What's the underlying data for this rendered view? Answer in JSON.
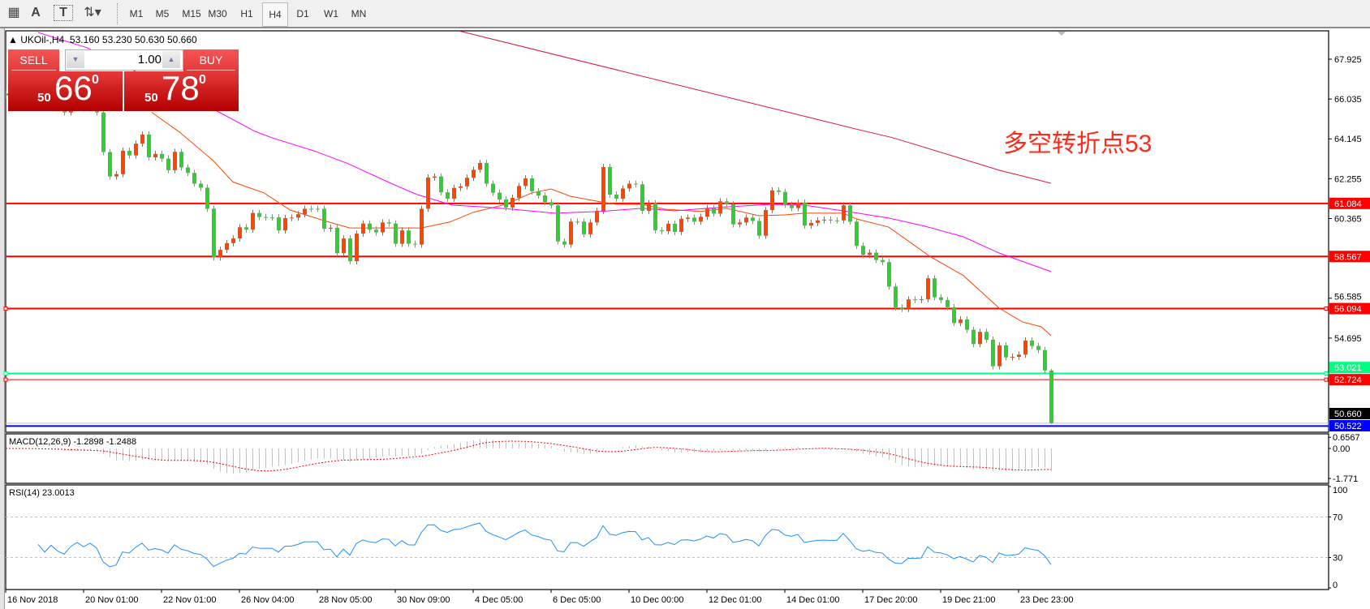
{
  "toolbar": {
    "tools": [
      {
        "icon": "period-separator-grid-icon",
        "glyph": "▦"
      },
      {
        "icon": "text-label-icon",
        "glyph": "A"
      },
      {
        "icon": "text-box-icon",
        "glyph": "T"
      },
      {
        "icon": "arrows-dropdown-icon",
        "glyph": "⇅▾"
      }
    ],
    "timeframes": [
      "M1",
      "M5",
      "M15",
      "M30",
      "H1",
      "H4",
      "D1",
      "W1",
      "MN"
    ],
    "active_timeframe": "H4"
  },
  "chart": {
    "symbol_line": "UKOil-,H4  53.160 53.230 50.630 50.660"
  },
  "trade_panel": {
    "sell_label": "SELL",
    "buy_label": "BUY",
    "lot": "1.00",
    "sell_price": {
      "prefix": "50",
      "big": "66",
      "sup": "0"
    },
    "buy_price": {
      "prefix": "50",
      "big": "78",
      "sup": "0"
    }
  },
  "annotation": "多空转折点53",
  "chart_data": {
    "type": "candlestick",
    "symbol": "UKOil-",
    "timeframe": "H4",
    "ylim": [
      50.23,
      69.27
    ],
    "first_open": 66.3,
    "last_bar": {
      "open": 53.16,
      "high": 53.23,
      "low": 50.63,
      "close": 50.66
    },
    "closes": [
      66.2,
      66.0,
      66.4,
      66.1,
      65.8,
      66.0,
      65.7,
      65.9,
      65.6,
      65.4,
      65.7,
      65.9,
      65.6,
      65.8,
      65.4,
      63.52,
      62.36,
      62.47,
      63.58,
      63.36,
      63.92,
      64.35,
      63.27,
      63.43,
      63.21,
      62.66,
      63.53,
      62.79,
      62.53,
      62.02,
      61.83,
      60.83,
      58.52,
      58.88,
      59.2,
      59.42,
      59.95,
      59.84,
      60.63,
      60.44,
      60.42,
      60.42,
      59.8,
      60.39,
      60.41,
      60.57,
      60.83,
      60.83,
      60.83,
      59.88,
      59.93,
      58.72,
      59.42,
      58.34,
      59.65,
      60.13,
      59.84,
      59.71,
      60.18,
      60.13,
      59.17,
      59.8,
      59.17,
      59.13,
      60.83,
      62.31,
      62.36,
      61.61,
      61.31,
      61.82,
      61.89,
      62.3,
      62.68,
      63.0,
      62.02,
      61.59,
      61.27,
      60.89,
      61.35,
      61.91,
      62.27,
      61.66,
      61.46,
      61.14,
      60.99,
      59.28,
      59.13,
      60.22,
      60.22,
      59.62,
      60.18,
      60.73,
      62.81,
      61.5,
      61.31,
      61.79,
      62.02,
      61.99,
      60.73,
      61.09,
      59.81,
      59.77,
      60.12,
      59.73,
      60.35,
      60.41,
      60.22,
      60.45,
      60.86,
      60.6,
      61.18,
      61.05,
      60.09,
      60.18,
      60.41,
      60.25,
      59.55,
      60.77,
      61.7,
      61.63,
      61.02,
      60.86,
      61.12,
      60.03,
      60.16,
      60.28,
      60.31,
      60.28,
      60.28,
      60.99,
      60.22,
      59.07,
      58.64,
      58.75,
      58.4,
      58.3,
      57.14,
      56.15,
      56.08,
      56.53,
      56.5,
      56.54,
      57.53,
      56.63,
      56.5,
      56.16,
      55.41,
      55.58,
      55.09,
      54.41,
      54.99,
      54.62,
      53.36,
      54.35,
      53.78,
      53.81,
      53.91,
      54.58,
      54.32,
      54.13,
      53.16,
      50.66
    ],
    "colors": {
      "bull": "#ff4500",
      "bear": "#32cd32"
    },
    "moving_averages": [
      {
        "color": "#ff4500",
        "points": [
          [
            22.5,
            65.4
          ],
          [
            26.8,
            64.46
          ],
          [
            32,
            63.1
          ],
          [
            35,
            62.1
          ],
          [
            39.8,
            61.58
          ],
          [
            43.8,
            60.77
          ],
          [
            49,
            60.27
          ],
          [
            53,
            59.92
          ],
          [
            64,
            59.92
          ],
          [
            68.4,
            60.2
          ],
          [
            72,
            60.66
          ],
          [
            77,
            61.04
          ],
          [
            81,
            61.58
          ],
          [
            84,
            61.77
          ],
          [
            87,
            61.42
          ],
          [
            91.6,
            61.16
          ],
          [
            94,
            61.04
          ],
          [
            98,
            61.04
          ],
          [
            101.5,
            60.81
          ],
          [
            107,
            60.7
          ],
          [
            111,
            60.85
          ],
          [
            116,
            60.5
          ],
          [
            120,
            60.54
          ],
          [
            123,
            60.62
          ],
          [
            129,
            60.62
          ],
          [
            131,
            60.35
          ],
          [
            136,
            59.96
          ],
          [
            142.5,
            58.54
          ],
          [
            147.5,
            57.66
          ],
          [
            153,
            56.12
          ],
          [
            156.6,
            55.46
          ],
          [
            159.5,
            55.23
          ],
          [
            161,
            54.81
          ]
        ]
      },
      {
        "color": "#ff00ff",
        "points": [
          [
            4.9,
            69.2
          ],
          [
            12.5,
            68.47
          ],
          [
            33,
            65.39
          ],
          [
            38.4,
            64.5
          ],
          [
            41,
            64.2
          ],
          [
            47.8,
            63.54
          ],
          [
            52.8,
            62.96
          ],
          [
            59.6,
            62.0
          ],
          [
            63.4,
            61.5
          ],
          [
            68.8,
            61.0
          ],
          [
            73.4,
            60.92
          ],
          [
            78,
            60.81
          ],
          [
            84.5,
            60.62
          ],
          [
            91.6,
            60.7
          ],
          [
            98,
            60.85
          ],
          [
            103,
            60.73
          ],
          [
            111,
            60.92
          ],
          [
            118,
            61.04
          ],
          [
            123,
            61.0
          ],
          [
            129,
            60.73
          ],
          [
            136,
            60.39
          ],
          [
            141.6,
            60.0
          ],
          [
            147.5,
            59.5
          ],
          [
            153,
            58.73
          ],
          [
            157.5,
            58.23
          ],
          [
            161,
            57.85
          ]
        ]
      },
      {
        "color": "#dc143c",
        "points": [
          [
            69.75,
            69.27
          ],
          [
            131.4,
            64.58
          ],
          [
            136.6,
            64.2
          ],
          [
            140.8,
            63.81
          ],
          [
            153,
            62.66
          ],
          [
            161,
            62.04
          ]
        ]
      }
    ],
    "price_ticks": [
      "67.925",
      "66.035",
      "64.145",
      "62.255",
      "60.365",
      "56.585",
      "54.695"
    ],
    "horizontal_lines": [
      {
        "price": 61.084,
        "label": "61.084",
        "color": "#ff0000",
        "style": "thick"
      },
      {
        "price": 58.567,
        "label": "58.567",
        "color": "#ff0000",
        "style": "thick"
      },
      {
        "price": 56.094,
        "label": "56.094",
        "color": "#ff0000",
        "style": "thick-marked"
      },
      {
        "price": 52.724,
        "label": "52.724",
        "color": "#ff0000",
        "style": "thin-marked"
      },
      {
        "price": 53.021,
        "label": "53.021",
        "color": "#00ff7f",
        "style": "thick-marked"
      },
      {
        "price": 50.66,
        "label": "50.660",
        "color": "#c0c0c0",
        "label_bg": "#000000",
        "style": "thin"
      },
      {
        "price": 50.522,
        "label": "50.522",
        "color": "#0000ff",
        "style": "thick"
      }
    ],
    "time_labels": [
      "16 Nov 2018",
      "20 Nov 01:00",
      "22 Nov 01:00",
      "26 Nov 04:00",
      "28 Nov 05:00",
      "30 Nov 09:00",
      "4 Dec 05:00",
      "6 Dec 05:00",
      "10 Dec 00:00",
      "12 Dec 01:00",
      "14 Dec 01:00",
      "17 Dec 20:00",
      "19 Dec 21:00",
      "23 Dec 23:00"
    ],
    "macd": {
      "title": "MACD(12,26,9) -1.2898 -1.2488",
      "params": [
        12,
        26,
        9
      ],
      "ylim": [
        -2.01,
        0.813
      ],
      "ticks": [
        {
          "value": 0.6567,
          "label": "0.6567"
        },
        {
          "value": 0,
          "label": "0.00"
        },
        {
          "value": -1.771,
          "label": "-1.771"
        }
      ],
      "histogram_color": "#c0c0c0",
      "signal_color": "#ff0000"
    },
    "rsi": {
      "title": "RSI(14) 23.0013",
      "period": 14,
      "ylim": [
        0,
        100
      ],
      "levels": [
        70,
        30
      ],
      "ticks": [
        {
          "value": 100,
          "label": "100"
        },
        {
          "value": 70,
          "label": "70"
        },
        {
          "value": 30,
          "label": "30"
        },
        {
          "value": 0,
          "label": "0"
        }
      ],
      "color": "#1e90ff"
    }
  }
}
